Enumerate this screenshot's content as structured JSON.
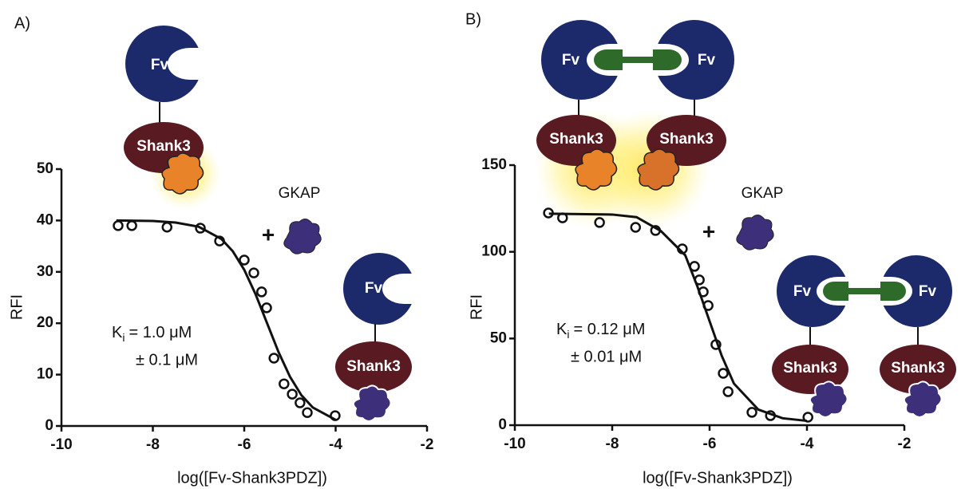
{
  "chart_data": [
    {
      "type": "scatter",
      "panel": "A)",
      "xlabel": "log([Fv-Shank3PDZ])",
      "ylabel": "RFI",
      "xlim": [
        -10,
        -2
      ],
      "xticks": [
        -10,
        -8,
        -6,
        -4,
        -2
      ],
      "ylim": [
        0,
        50
      ],
      "yticks": [
        0,
        10,
        20,
        30,
        40,
        50
      ],
      "annotation": {
        "k": "K",
        "sub": "i",
        "line1": "= 1.0 μM",
        "line2": "± 0.1 μM"
      },
      "diagram": {
        "fv": "Fv",
        "shank": "Shank3",
        "ligand": "GKAP",
        "plus": "+"
      },
      "series": [
        {
          "mode": "markers",
          "color": "#111111",
          "x": [
            -8.76,
            -8.46,
            -7.69,
            -6.96,
            -6.54,
            -6.0,
            -5.79,
            -5.62,
            -5.51,
            -5.35,
            -5.13,
            -4.95,
            -4.78,
            -4.62,
            -4.01
          ],
          "values": [
            39.0,
            39.0,
            38.7,
            38.5,
            36.0,
            32.3,
            29.8,
            26.1,
            23.0,
            13.2,
            8.2,
            6.2,
            4.5,
            2.6,
            2.0
          ]
        },
        {
          "mode": "line",
          "color": "#111111",
          "x": [
            -8.8,
            -8,
            -7.5,
            -7,
            -6.5,
            -6.25,
            -6,
            -5.75,
            -5.5,
            -5.25,
            -5,
            -4.75,
            -4.5,
            -4
          ],
          "values": [
            40,
            39.9,
            39.6,
            38.8,
            36.4,
            34.0,
            30.4,
            25.6,
            20,
            14.4,
            9.6,
            6.0,
            3.6,
            1.2
          ]
        }
      ]
    },
    {
      "type": "scatter",
      "panel": "B)",
      "xlabel": "log([Fv-Shank3PDZ])",
      "ylabel": "RFI",
      "xlim": [
        -10,
        -2
      ],
      "xticks": [
        -10,
        -8,
        -6,
        -4,
        -2
      ],
      "ylim": [
        0,
        150
      ],
      "yticks": [
        0,
        50,
        100,
        150
      ],
      "annotation": {
        "k": "K",
        "sub": "i",
        "line1": "= 0.12 μM",
        "line2": "± 0.01 μM"
      },
      "diagram": {
        "fv": "Fv",
        "shank": "Shank3",
        "ligand": "GKAP",
        "plus": "+"
      },
      "series": [
        {
          "mode": "markers",
          "color": "#111111",
          "x": [
            -9.31,
            -9.02,
            -8.26,
            -7.52,
            -7.11,
            -6.56,
            -6.31,
            -6.21,
            -6.13,
            -6.03,
            -5.87,
            -5.72,
            -5.62,
            -5.13,
            -4.75,
            -3.98
          ],
          "values": [
            122.4,
            119.6,
            116.9,
            114.1,
            112.3,
            101.7,
            91.6,
            83.8,
            76.9,
            69.0,
            46.5,
            29.9,
            19.3,
            7.4,
            5.5,
            4.6
          ]
        },
        {
          "mode": "line",
          "color": "#111111",
          "x": [
            -9.3,
            -8,
            -7.5,
            -7,
            -6.5,
            -6.25,
            -6,
            -5.75,
            -5.5,
            -5,
            -4.5,
            -4
          ],
          "values": [
            122,
            121.5,
            120,
            112,
            98,
            80,
            60,
            40,
            24,
            9,
            4,
            2.5
          ]
        }
      ]
    }
  ]
}
